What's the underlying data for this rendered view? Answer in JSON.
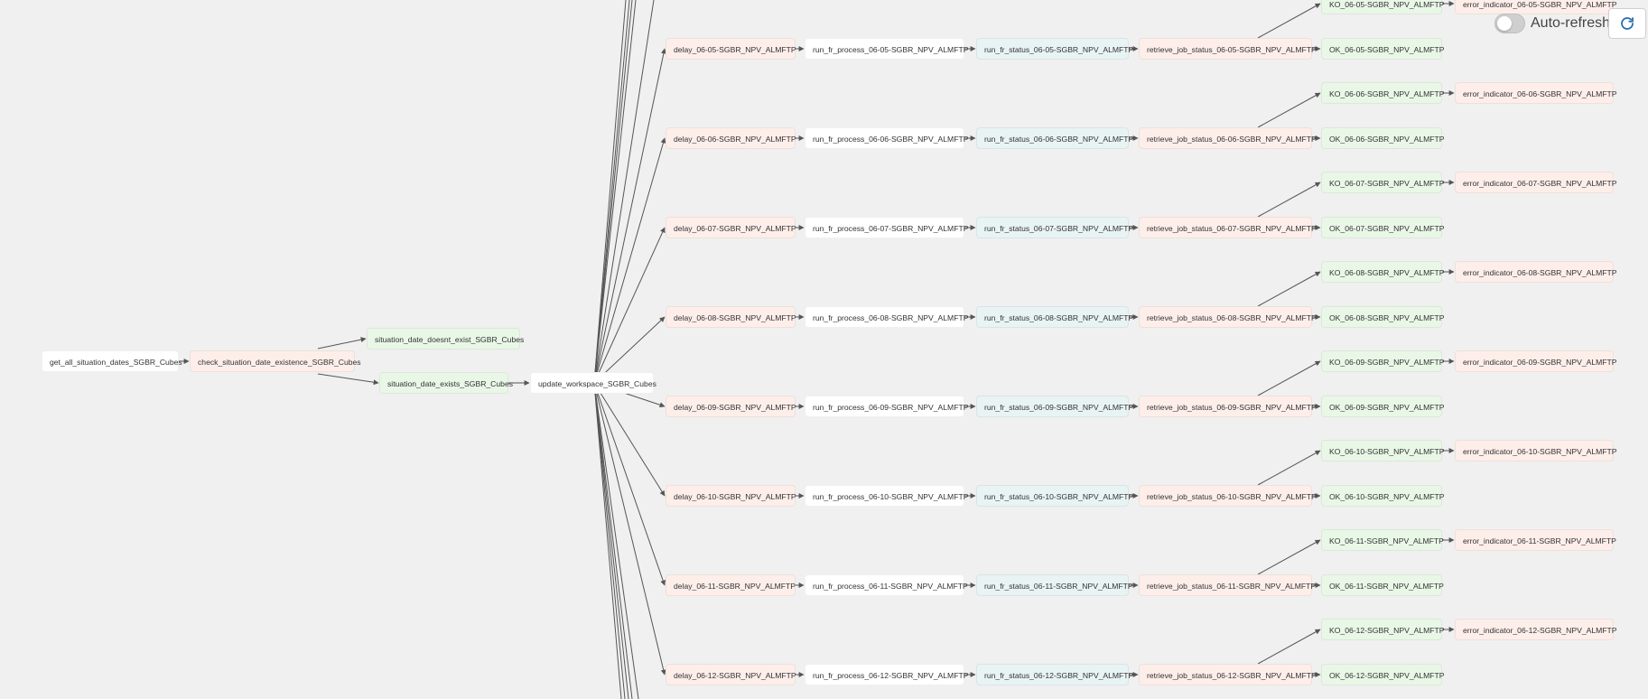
{
  "controls": {
    "auto_refresh_label": "Auto-refresh",
    "auto_refresh_on": false,
    "refresh_icon": "refresh-icon"
  },
  "colors": {
    "white": "#ffffff",
    "red": "#fdeeea",
    "green": "#e9f7e7",
    "blue": "#e8f3f4",
    "edge": "#555555",
    "background": "#f0f0f0"
  },
  "graph": {
    "top": [
      {
        "id": "get_all",
        "label": "get_all_situation_dates_SGBR_Cubes",
        "color": "white"
      },
      {
        "id": "check",
        "label": "check_situation_date_existence_SGBR_Cubes",
        "color": "red"
      },
      {
        "id": "not_exist",
        "label": "situation_date_doesnt_exist_SGBR_Cubes",
        "color": "green"
      },
      {
        "id": "exists",
        "label": "situation_date_exists_SGBR_Cubes",
        "color": "green"
      },
      {
        "id": "update",
        "label": "update_workspace_SGBR_Cubes",
        "color": "white"
      }
    ],
    "partial_row": {
      "ko": "KO_06-05-SGBR_NPV_ALMFTP",
      "err": "error_indicator_06-05-SGBR_NPV_ALMFTP"
    },
    "rows": [
      {
        "date": "06-05",
        "delay": "delay_06-05-SGBR_NPV_ALMFTP",
        "run": "run_fr_process_06-05-SGBR_NPV_ALMFTP",
        "status": "run_fr_status_06-05-SGBR_NPV_ALMFTP",
        "retrieve": "retrieve_job_status_06-05-SGBR_NPV_ALMFTP",
        "ok": "OK_06-05-SGBR_NPV_ALMFTP",
        "ko": "KO_06-06-SGBR_NPV_ALMFTP",
        "err": "error_indicator_06-06-SGBR_NPV_ALMFTP"
      },
      {
        "date": "06-06",
        "delay": "delay_06-06-SGBR_NPV_ALMFTP",
        "run": "run_fr_process_06-06-SGBR_NPV_ALMFTP",
        "status": "run_fr_status_06-06-SGBR_NPV_ALMFTP",
        "retrieve": "retrieve_job_status_06-06-SGBR_NPV_ALMFTP",
        "ok": "OK_06-06-SGBR_NPV_ALMFTP",
        "ko": "KO_06-07-SGBR_NPV_ALMFTP",
        "err": "error_indicator_06-07-SGBR_NPV_ALMFTP"
      },
      {
        "date": "06-07",
        "delay": "delay_06-07-SGBR_NPV_ALMFTP",
        "run": "run_fr_process_06-07-SGBR_NPV_ALMFTP",
        "status": "run_fr_status_06-07-SGBR_NPV_ALMFTP",
        "retrieve": "retrieve_job_status_06-07-SGBR_NPV_ALMFTP",
        "ok": "OK_06-07-SGBR_NPV_ALMFTP",
        "ko": "KO_06-08-SGBR_NPV_ALMFTP",
        "err": "error_indicator_06-08-SGBR_NPV_ALMFTP"
      },
      {
        "date": "06-08",
        "delay": "delay_06-08-SGBR_NPV_ALMFTP",
        "run": "run_fr_process_06-08-SGBR_NPV_ALMFTP",
        "status": "run_fr_status_06-08-SGBR_NPV_ALMFTP",
        "retrieve": "retrieve_job_status_06-08-SGBR_NPV_ALMFTP",
        "ok": "OK_06-08-SGBR_NPV_ALMFTP",
        "ko": "KO_06-09-SGBR_NPV_ALMFTP",
        "err": "error_indicator_06-09-SGBR_NPV_ALMFTP"
      },
      {
        "date": "06-09",
        "delay": "delay_06-09-SGBR_NPV_ALMFTP",
        "run": "run_fr_process_06-09-SGBR_NPV_ALMFTP",
        "status": "run_fr_status_06-09-SGBR_NPV_ALMFTP",
        "retrieve": "retrieve_job_status_06-09-SGBR_NPV_ALMFTP",
        "ok": "OK_06-09-SGBR_NPV_ALMFTP",
        "ko": "KO_06-10-SGBR_NPV_ALMFTP",
        "err": "error_indicator_06-10-SGBR_NPV_ALMFTP"
      },
      {
        "date": "06-10",
        "delay": "delay_06-10-SGBR_NPV_ALMFTP",
        "run": "run_fr_process_06-10-SGBR_NPV_ALMFTP",
        "status": "run_fr_status_06-10-SGBR_NPV_ALMFTP",
        "retrieve": "retrieve_job_status_06-10-SGBR_NPV_ALMFTP",
        "ok": "OK_06-10-SGBR_NPV_ALMFTP",
        "ko": "KO_06-11-SGBR_NPV_ALMFTP",
        "err": "error_indicator_06-11-SGBR_NPV_ALMFTP"
      },
      {
        "date": "06-11",
        "delay": "delay_06-11-SGBR_NPV_ALMFTP",
        "run": "run_fr_process_06-11-SGBR_NPV_ALMFTP",
        "status": "run_fr_status_06-11-SGBR_NPV_ALMFTP",
        "retrieve": "retrieve_job_status_06-11-SGBR_NPV_ALMFTP",
        "ok": "OK_06-11-SGBR_NPV_ALMFTP",
        "ko": "KO_06-12-SGBR_NPV_ALMFTP",
        "err": "error_indicator_06-12-SGBR_NPV_ALMFTP"
      },
      {
        "date": "06-12",
        "delay": "delay_06-12-SGBR_NPV_ALMFTP",
        "run": "run_fr_process_06-12-SGBR_NPV_ALMFTP",
        "status": "run_fr_status_06-12-SGBR_NPV_ALMFTP",
        "retrieve": "retrieve_job_status_06-12-SGBR_NPV_ALMFTP",
        "ok": "OK_06-12-SGBR_NPV_ALMFTP"
      }
    ]
  }
}
